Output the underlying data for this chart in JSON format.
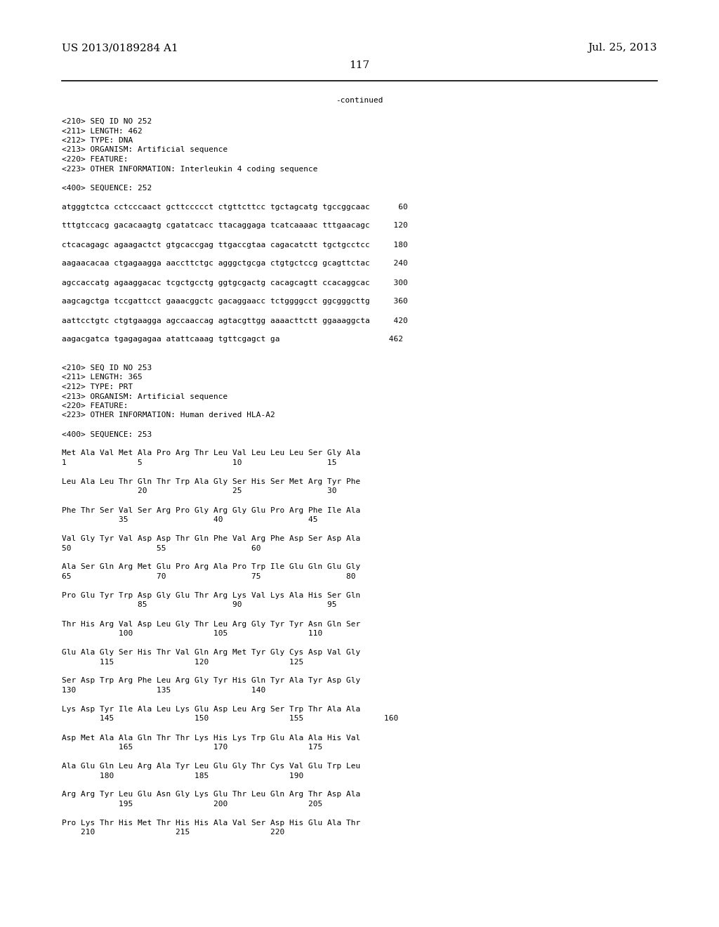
{
  "header_left": "US 2013/0189284 A1",
  "header_right": "Jul. 25, 2013",
  "page_number": "117",
  "continued_label": "-continued",
  "background_color": "#ffffff",
  "text_color": "#000000",
  "font_size_header": 11,
  "font_size_body": 8.0,
  "lines": [
    {
      "text": "<210> SEQ ID NO 252"
    },
    {
      "text": "<211> LENGTH: 462"
    },
    {
      "text": "<212> TYPE: DNA"
    },
    {
      "text": "<213> ORGANISM: Artificial sequence"
    },
    {
      "text": "<220> FEATURE:"
    },
    {
      "text": "<223> OTHER INFORMATION: Interleukin 4 coding sequence"
    },
    {
      "text": ""
    },
    {
      "text": "<400> SEQUENCE: 252"
    },
    {
      "text": ""
    },
    {
      "text": "atgggtctca cctcccaact gcttccccct ctgttcttcc tgctagcatg tgccggcaac      60"
    },
    {
      "text": ""
    },
    {
      "text": "tttgtccacg gacacaagtg cgatatcacc ttacaggaga tcatcaaaac tttgaacagc     120"
    },
    {
      "text": ""
    },
    {
      "text": "ctcacagagc agaagactct gtgcaccgag ttgaccgtaa cagacatctt tgctgcctcc     180"
    },
    {
      "text": ""
    },
    {
      "text": "aagaacacaa ctgagaagga aaccttctgc agggctgcga ctgtgctccg gcagttctac     240"
    },
    {
      "text": ""
    },
    {
      "text": "agccaccatg agaaggacac tcgctgcctg ggtgcgactg cacagcagtt ccacaggcac     300"
    },
    {
      "text": ""
    },
    {
      "text": "aagcagctga tccgattcct gaaacggctc gacaggaacc tctggggcct ggcgggcttg     360"
    },
    {
      "text": ""
    },
    {
      "text": "aattcctgtc ctgtgaagga agccaaccag agtacgttgg aaaacttctt ggaaaggcta     420"
    },
    {
      "text": ""
    },
    {
      "text": "aagacgatca tgagagagaa atattcaaag tgttcgagct ga                       462"
    },
    {
      "text": ""
    },
    {
      "text": ""
    },
    {
      "text": "<210> SEQ ID NO 253"
    },
    {
      "text": "<211> LENGTH: 365"
    },
    {
      "text": "<212> TYPE: PRT"
    },
    {
      "text": "<213> ORGANISM: Artificial sequence"
    },
    {
      "text": "<220> FEATURE:"
    },
    {
      "text": "<223> OTHER INFORMATION: Human derived HLA-A2"
    },
    {
      "text": ""
    },
    {
      "text": "<400> SEQUENCE: 253"
    },
    {
      "text": ""
    },
    {
      "text": "Met Ala Val Met Ala Pro Arg Thr Leu Val Leu Leu Leu Ser Gly Ala"
    },
    {
      "text": "1               5                   10                  15"
    },
    {
      "text": ""
    },
    {
      "text": "Leu Ala Leu Thr Gln Thr Trp Ala Gly Ser His Ser Met Arg Tyr Phe"
    },
    {
      "text": "                20                  25                  30"
    },
    {
      "text": ""
    },
    {
      "text": "Phe Thr Ser Val Ser Arg Pro Gly Arg Gly Glu Pro Arg Phe Ile Ala"
    },
    {
      "text": "            35                  40                  45"
    },
    {
      "text": ""
    },
    {
      "text": "Val Gly Tyr Val Asp Asp Thr Gln Phe Val Arg Phe Asp Ser Asp Ala"
    },
    {
      "text": "50                  55                  60"
    },
    {
      "text": ""
    },
    {
      "text": "Ala Ser Gln Arg Met Glu Pro Arg Ala Pro Trp Ile Glu Gln Glu Gly"
    },
    {
      "text": "65                  70                  75                  80"
    },
    {
      "text": ""
    },
    {
      "text": "Pro Glu Tyr Trp Asp Gly Glu Thr Arg Lys Val Lys Ala His Ser Gln"
    },
    {
      "text": "                85                  90                  95"
    },
    {
      "text": ""
    },
    {
      "text": "Thr His Arg Val Asp Leu Gly Thr Leu Arg Gly Tyr Tyr Asn Gln Ser"
    },
    {
      "text": "            100                 105                 110"
    },
    {
      "text": ""
    },
    {
      "text": "Glu Ala Gly Ser His Thr Val Gln Arg Met Tyr Gly Cys Asp Val Gly"
    },
    {
      "text": "        115                 120                 125"
    },
    {
      "text": ""
    },
    {
      "text": "Ser Asp Trp Arg Phe Leu Arg Gly Tyr His Gln Tyr Ala Tyr Asp Gly"
    },
    {
      "text": "130                 135                 140"
    },
    {
      "text": ""
    },
    {
      "text": "Lys Asp Tyr Ile Ala Leu Lys Glu Asp Leu Arg Ser Trp Thr Ala Ala"
    },
    {
      "text": "        145                 150                 155                 160"
    },
    {
      "text": ""
    },
    {
      "text": "Asp Met Ala Ala Gln Thr Thr Lys His Lys Trp Glu Ala Ala His Val"
    },
    {
      "text": "            165                 170                 175"
    },
    {
      "text": ""
    },
    {
      "text": "Ala Glu Gln Leu Arg Ala Tyr Leu Glu Gly Thr Cys Val Glu Trp Leu"
    },
    {
      "text": "        180                 185                 190"
    },
    {
      "text": ""
    },
    {
      "text": "Arg Arg Tyr Leu Glu Asn Gly Lys Glu Thr Leu Gln Arg Thr Asp Ala"
    },
    {
      "text": "            195                 200                 205"
    },
    {
      "text": ""
    },
    {
      "text": "Pro Lys Thr His Met Thr His His Ala Val Ser Asp His Glu Ala Thr"
    },
    {
      "text": "    210                 215                 220"
    }
  ]
}
